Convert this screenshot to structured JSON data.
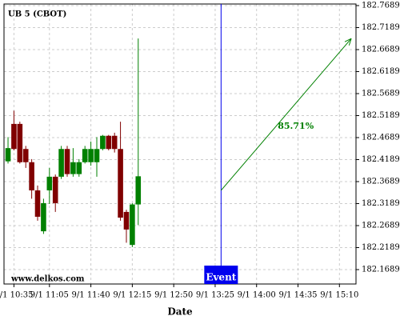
{
  "chart_data": {
    "type": "candlestick",
    "title": "UB 5 (CBOT)",
    "xlabel": "Date",
    "watermark": "www.delkos.com",
    "x": [
      0,
      1,
      2,
      3,
      4,
      5,
      6,
      7,
      8,
      9,
      10,
      11,
      12,
      13,
      14,
      15,
      16,
      17,
      18,
      19,
      20,
      21,
      22
    ],
    "open": [
      182.415,
      182.5,
      182.5,
      182.443,
      182.413,
      182.349,
      182.256,
      182.349,
      182.38,
      182.38,
      182.443,
      182.386,
      182.386,
      182.413,
      182.413,
      182.413,
      182.443,
      182.473,
      182.473,
      182.443,
      182.3,
      182.225,
      182.317
    ],
    "high": [
      182.47,
      182.53,
      182.505,
      182.45,
      182.42,
      182.36,
      182.33,
      182.4,
      182.385,
      182.45,
      182.45,
      182.445,
      182.42,
      182.45,
      182.46,
      182.47,
      182.475,
      182.475,
      182.48,
      182.505,
      182.305,
      182.32,
      182.694
    ],
    "low": [
      182.41,
      182.44,
      182.41,
      182.4,
      182.33,
      182.28,
      182.25,
      182.318,
      182.3,
      182.375,
      182.38,
      182.38,
      182.38,
      182.41,
      182.405,
      182.38,
      182.44,
      182.44,
      182.435,
      182.28,
      182.23,
      182.22,
      182.27
    ],
    "close": [
      182.445,
      182.443,
      182.413,
      182.413,
      182.349,
      182.289,
      182.32,
      182.38,
      182.32,
      182.443,
      182.386,
      182.413,
      182.413,
      182.443,
      182.443,
      182.443,
      182.473,
      182.443,
      182.443,
      182.287,
      182.26,
      182.317,
      182.381
    ],
    "up_color": "#008000",
    "down_color": "#800000",
    "xlim": [
      -0.68,
      58.8
    ],
    "xticks": [
      {
        "value": 1,
        "label": "9/1 10:35"
      },
      {
        "value": 7,
        "label": "9/1 11:05"
      },
      {
        "value": 14,
        "label": "9/1 11:40"
      },
      {
        "value": 21,
        "label": "9/1 12:15"
      },
      {
        "value": 28,
        "label": "9/1 12:50"
      },
      {
        "value": 35,
        "label": "9/1 13:25"
      },
      {
        "value": 42,
        "label": "9/1 14:00"
      },
      {
        "value": 49,
        "label": "9/1 14:35"
      },
      {
        "value": 56,
        "label": "9/1 15:10"
      }
    ],
    "ylim": [
      182.1362,
      182.7725
    ],
    "yticks": [
      182.7689,
      182.7189,
      182.6689,
      182.6189,
      182.5689,
      182.5189,
      182.4689,
      182.4189,
      182.3689,
      182.3189,
      182.2689,
      182.2189,
      182.1689
    ],
    "grid": true,
    "event": {
      "label": "Event",
      "x": 36,
      "color": "#0000ee"
    },
    "arrow": {
      "label": "85.71%",
      "x": [
        36,
        58
      ],
      "y": [
        182.349,
        182.694
      ],
      "color": "#008000"
    }
  }
}
